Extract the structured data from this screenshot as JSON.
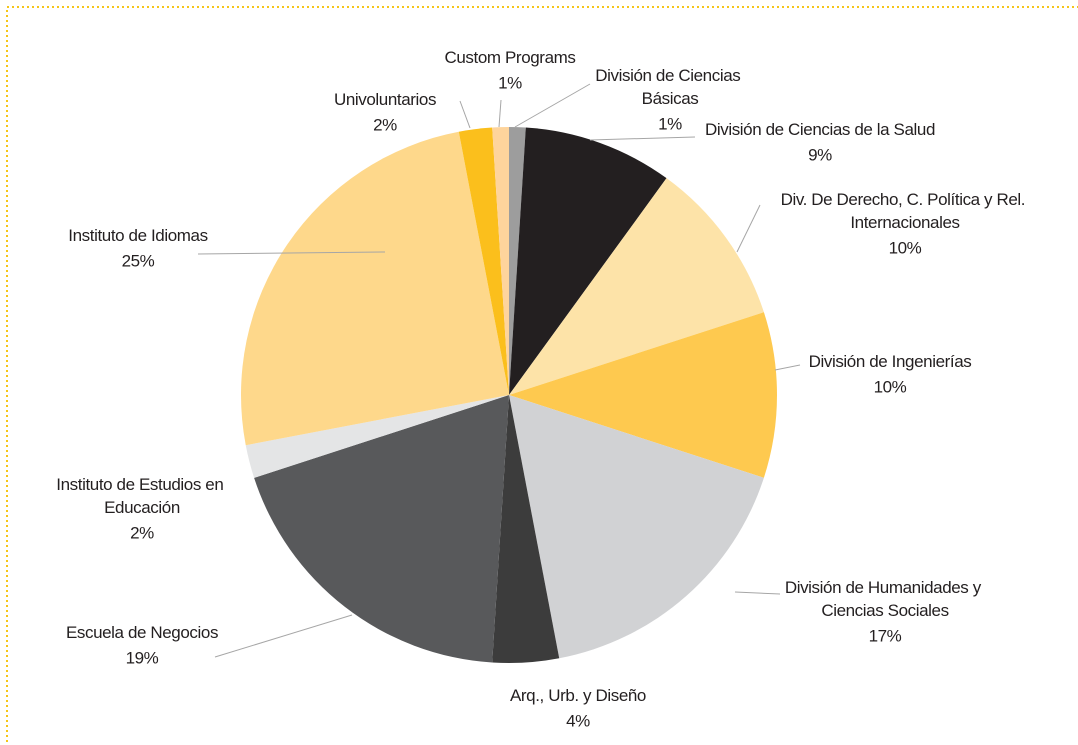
{
  "chart_data": {
    "type": "pie",
    "categories": [
      "División de Ciencias Básicas",
      "División de Ciencias de la Salud",
      "Div. De Derecho, C. Política y Rel. Internacionales",
      "División de Ingenierías",
      "División de Humanidades y Ciencias Sociales",
      "Arq., Urb. y Diseño",
      "Escuela de Negocios",
      "Instituto de Estudios en Educación",
      "Instituto de Idiomas",
      "Univoluntarios",
      "Custom Programs"
    ],
    "values": [
      1,
      9,
      10,
      10,
      17,
      4,
      19,
      2,
      25,
      2,
      1
    ],
    "value_labels": [
      "1%",
      "9%",
      "10%",
      "10%",
      "17%",
      "4%",
      "19%",
      "2%",
      "25%",
      "2%",
      "1%"
    ],
    "colors": [
      "#9d9d9d",
      "#231f20",
      "#fde3a8",
      "#fec94f",
      "#d1d2d4",
      "#3c3c3c",
      "#58595b",
      "#e4e5e6",
      "#fed88b",
      "#fbbf1c",
      "#fed49c"
    ]
  }
}
